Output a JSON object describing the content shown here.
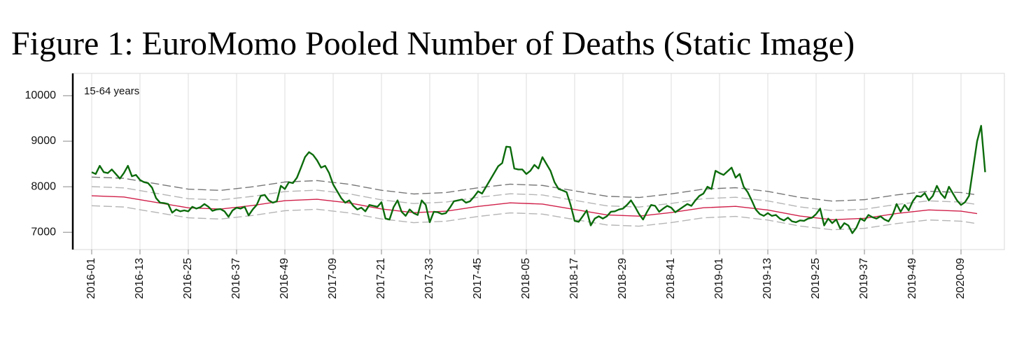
{
  "chart_data": {
    "type": "line",
    "title": "Figure 1: EuroMomo Pooled Number of Deaths (Static Image)",
    "annotation": "15-64 years",
    "x": [
      "2016-01",
      "2016-02",
      "2016-03",
      "2016-04",
      "2016-05",
      "2016-06",
      "2016-07",
      "2016-08",
      "2016-09",
      "2016-10",
      "2016-11",
      "2016-12",
      "2016-13",
      "2016-14",
      "2016-15",
      "2016-16",
      "2016-17",
      "2016-18",
      "2016-19",
      "2016-20",
      "2016-21",
      "2016-22",
      "2016-23",
      "2016-24",
      "2016-25",
      "2016-26",
      "2016-27",
      "2016-28",
      "2016-29",
      "2016-30",
      "2016-31",
      "2016-32",
      "2016-33",
      "2016-34",
      "2016-35",
      "2016-36",
      "2016-37",
      "2016-38",
      "2016-39",
      "2016-40",
      "2016-41",
      "2016-42",
      "2016-43",
      "2016-44",
      "2016-45",
      "2016-46",
      "2016-47",
      "2016-48",
      "2016-49",
      "2016-50",
      "2016-51",
      "2016-52",
      "2017-01",
      "2017-02",
      "2017-03",
      "2017-04",
      "2017-05",
      "2017-06",
      "2017-07",
      "2017-08",
      "2017-09",
      "2017-10",
      "2017-11",
      "2017-12",
      "2017-13",
      "2017-14",
      "2017-15",
      "2017-16",
      "2017-17",
      "2017-18",
      "2017-19",
      "2017-20",
      "2017-21",
      "2017-22",
      "2017-23",
      "2017-24",
      "2017-25",
      "2017-26",
      "2017-27",
      "2017-28",
      "2017-29",
      "2017-30",
      "2017-31",
      "2017-32",
      "2017-33",
      "2017-34",
      "2017-35",
      "2017-36",
      "2017-37",
      "2017-38",
      "2017-39",
      "2017-40",
      "2017-41",
      "2017-42",
      "2017-43",
      "2017-44",
      "2017-45",
      "2017-46",
      "2017-47",
      "2017-48",
      "2017-49",
      "2017-50",
      "2017-51",
      "2017-52",
      "2018-01",
      "2018-02",
      "2018-03",
      "2018-04",
      "2018-05",
      "2018-06",
      "2018-07",
      "2018-08",
      "2018-09",
      "2018-10",
      "2018-11",
      "2018-12",
      "2018-13",
      "2018-14",
      "2018-15",
      "2018-16",
      "2018-17",
      "2018-18",
      "2018-19",
      "2018-20",
      "2018-21",
      "2018-22",
      "2018-23",
      "2018-24",
      "2018-25",
      "2018-26",
      "2018-27",
      "2018-28",
      "2018-29",
      "2018-30",
      "2018-31",
      "2018-32",
      "2018-33",
      "2018-34",
      "2018-35",
      "2018-36",
      "2018-37",
      "2018-38",
      "2018-39",
      "2018-40",
      "2018-41",
      "2018-42",
      "2018-43",
      "2018-44",
      "2018-45",
      "2018-46",
      "2018-47",
      "2018-48",
      "2018-49",
      "2018-50",
      "2018-51",
      "2018-52",
      "2019-01",
      "2019-02",
      "2019-03",
      "2019-04",
      "2019-05",
      "2019-06",
      "2019-07",
      "2019-08",
      "2019-09",
      "2019-10",
      "2019-11",
      "2019-12",
      "2019-13",
      "2019-14",
      "2019-15",
      "2019-16",
      "2019-17",
      "2019-18",
      "2019-19",
      "2019-20",
      "2019-21",
      "2019-22",
      "2019-23",
      "2019-24",
      "2019-25",
      "2019-26",
      "2019-27",
      "2019-28",
      "2019-29",
      "2019-30",
      "2019-31",
      "2019-32",
      "2019-33",
      "2019-34",
      "2019-35",
      "2019-36",
      "2019-37",
      "2019-38",
      "2019-39",
      "2019-40",
      "2019-41",
      "2019-42",
      "2019-43",
      "2019-44",
      "2019-45",
      "2019-46",
      "2019-47",
      "2019-48",
      "2019-49",
      "2019-50",
      "2019-51",
      "2019-52",
      "2020-01",
      "2020-02",
      "2020-03",
      "2020-04",
      "2020-05",
      "2020-06",
      "2020-07",
      "2020-08",
      "2020-09",
      "2020-10",
      "2020-11",
      "2020-12",
      "2020-13",
      "2020-14",
      "2020-15"
    ],
    "xticks": [
      "2016-01",
      "2016-13",
      "2016-25",
      "2016-37",
      "2016-49",
      "2017-09",
      "2017-21",
      "2017-33",
      "2017-45",
      "2018-05",
      "2018-17",
      "2018-29",
      "2018-41",
      "2019-01",
      "2019-13",
      "2019-25",
      "2019-37",
      "2019-49",
      "2020-09"
    ],
    "ylim": [
      6620,
      10490
    ],
    "yticks": [
      7000,
      8000,
      9000,
      10000
    ],
    "grid": true,
    "series": [
      {
        "color": "#777777",
        "line_style": "dashed",
        "x": [
          "2016-01",
          "2016-09",
          "2016-17",
          "2016-25",
          "2016-33",
          "2016-41",
          "2016-49",
          "2017-05",
          "2017-13",
          "2017-21",
          "2017-29",
          "2017-37",
          "2017-45",
          "2018-01",
          "2018-09",
          "2018-17",
          "2018-25",
          "2018-33",
          "2018-41",
          "2018-49",
          "2019-05",
          "2019-13",
          "2019-21",
          "2019-29",
          "2019-37",
          "2019-45",
          "2020-01",
          "2020-09",
          "2020-13"
        ],
        "values": [
          8212,
          8185,
          8066,
          7947,
          7920,
          7999,
          8104,
          8135,
          8054,
          7922,
          7841,
          7872,
          7977,
          8056,
          8029,
          7910,
          7791,
          7764,
          7843,
          7948,
          7979,
          7898,
          7766,
          7685,
          7716,
          7821,
          7900,
          7873,
          7820
        ]
      },
      {
        "color": "#b5b5b5",
        "line_style": "dashed",
        "x": [
          "2016-01",
          "2016-09",
          "2016-17",
          "2016-25",
          "2016-33",
          "2016-41",
          "2016-49",
          "2017-05",
          "2017-13",
          "2017-21",
          "2017-29",
          "2017-37",
          "2017-45",
          "2018-01",
          "2018-09",
          "2018-17",
          "2018-25",
          "2018-33",
          "2018-41",
          "2018-49",
          "2019-05",
          "2019-13",
          "2019-21",
          "2019-29",
          "2019-37",
          "2019-45",
          "2020-01",
          "2020-09",
          "2020-13"
        ],
        "values": [
          8002,
          7975,
          7856,
          7737,
          7710,
          7789,
          7894,
          7925,
          7844,
          7712,
          7631,
          7662,
          7767,
          7846,
          7819,
          7700,
          7581,
          7554,
          7633,
          7738,
          7769,
          7688,
          7556,
          7475,
          7506,
          7611,
          7690,
          7663,
          7610
        ]
      },
      {
        "color": "#b5b5b5",
        "line_style": "dashed",
        "x": [
          "2016-01",
          "2016-09",
          "2016-17",
          "2016-25",
          "2016-33",
          "2016-41",
          "2016-49",
          "2017-05",
          "2017-13",
          "2017-21",
          "2017-29",
          "2017-37",
          "2017-45",
          "2018-01",
          "2018-09",
          "2018-17",
          "2018-25",
          "2018-33",
          "2018-41",
          "2018-49",
          "2019-05",
          "2019-13",
          "2019-21",
          "2019-29",
          "2019-37",
          "2019-45",
          "2020-01",
          "2020-09",
          "2020-13"
        ],
        "values": [
          7582,
          7555,
          7436,
          7317,
          7290,
          7369,
          7474,
          7505,
          7424,
          7292,
          7211,
          7242,
          7347,
          7426,
          7399,
          7280,
          7161,
          7134,
          7213,
          7318,
          7349,
          7268,
          7136,
          7055,
          7086,
          7191,
          7270,
          7243,
          7190
        ]
      },
      {
        "color": "#d0204a",
        "line_style": "solid",
        "x": [
          "2016-01",
          "2016-09",
          "2016-17",
          "2016-25",
          "2016-33",
          "2016-41",
          "2016-49",
          "2017-05",
          "2017-13",
          "2017-21",
          "2017-29",
          "2017-37",
          "2017-45",
          "2018-01",
          "2018-09",
          "2018-17",
          "2018-25",
          "2018-33",
          "2018-41",
          "2018-49",
          "2019-05",
          "2019-13",
          "2019-21",
          "2019-29",
          "2019-37",
          "2019-45",
          "2020-01",
          "2020-09",
          "2020-13"
        ],
        "values": [
          7802,
          7775,
          7656,
          7537,
          7510,
          7589,
          7694,
          7725,
          7644,
          7512,
          7431,
          7462,
          7567,
          7646,
          7619,
          7500,
          7381,
          7354,
          7433,
          7538,
          7569,
          7488,
          7356,
          7275,
          7306,
          7411,
          7490,
          7463,
          7410
        ]
      },
      {
        "color": "#0b6b0b",
        "line_style": "solid",
        "values": [
          8320,
          8280,
          8460,
          8320,
          8300,
          8380,
          8280,
          8180,
          8300,
          8460,
          8230,
          8260,
          8150,
          8100,
          8080,
          7980,
          7750,
          7650,
          7640,
          7620,
          7430,
          7500,
          7460,
          7480,
          7460,
          7560,
          7520,
          7550,
          7620,
          7560,
          7470,
          7500,
          7510,
          7460,
          7340,
          7480,
          7540,
          7520,
          7560,
          7370,
          7500,
          7600,
          7800,
          7820,
          7700,
          7650,
          7680,
          8020,
          7950,
          8100,
          8080,
          8200,
          8420,
          8650,
          8760,
          8700,
          8580,
          8420,
          8460,
          8300,
          8050,
          7900,
          7750,
          7650,
          7700,
          7580,
          7500,
          7540,
          7460,
          7600,
          7580,
          7560,
          7660,
          7300,
          7280,
          7550,
          7700,
          7450,
          7360,
          7500,
          7420,
          7380,
          7700,
          7600,
          7220,
          7450,
          7440,
          7400,
          7420,
          7540,
          7680,
          7700,
          7720,
          7650,
          7680,
          7780,
          7900,
          7850,
          8000,
          8150,
          8300,
          8450,
          8520,
          8880,
          8870,
          8400,
          8380,
          8380,
          8280,
          8350,
          8480,
          8400,
          8650,
          8500,
          8350,
          8100,
          7950,
          7920,
          7880,
          7600,
          7250,
          7230,
          7350,
          7480,
          7150,
          7300,
          7350,
          7300,
          7350,
          7450,
          7460,
          7500,
          7520,
          7600,
          7700,
          7560,
          7400,
          7280,
          7450,
          7600,
          7580,
          7450,
          7520,
          7580,
          7540,
          7440,
          7500,
          7560,
          7620,
          7580,
          7700,
          7800,
          7850,
          8000,
          7950,
          8350,
          8300,
          8260,
          8340,
          8420,
          8200,
          8280,
          8000,
          7880,
          7700,
          7500,
          7400,
          7360,
          7420,
          7360,
          7380,
          7300,
          7260,
          7320,
          7240,
          7220,
          7260,
          7250,
          7300,
          7320,
          7400,
          7520,
          7150,
          7300,
          7200,
          7280,
          7080,
          7200,
          7150,
          6980,
          7100,
          7300,
          7250,
          7380,
          7330,
          7300,
          7350,
          7280,
          7240,
          7380,
          7620,
          7450,
          7600,
          7480,
          7680,
          7800,
          7780,
          7860,
          7700,
          7800,
          8020,
          7850,
          7750,
          8000,
          7850,
          7700,
          7600,
          7660,
          7800,
          8400,
          9000,
          9340,
          8320
        ]
      }
    ]
  }
}
